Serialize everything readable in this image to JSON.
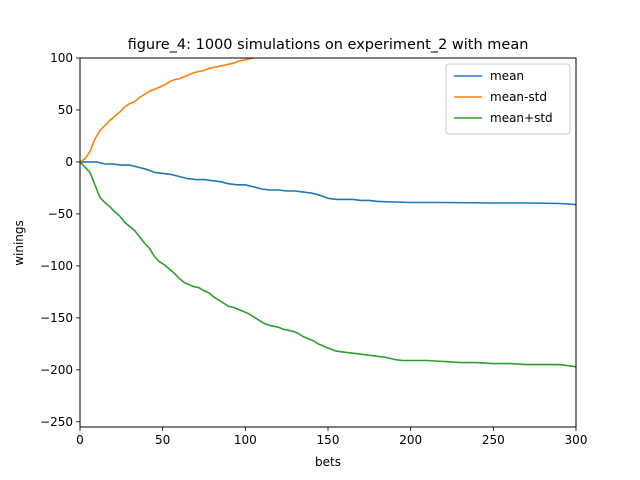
{
  "chart_data": {
    "type": "line",
    "title": "figure_4: 1000 simulations on experiment_2 with mean",
    "xlabel": "bets",
    "ylabel": "winings",
    "xlim": [
      0,
      300
    ],
    "ylim": [
      -255,
      100
    ],
    "xticks": [
      0,
      50,
      100,
      150,
      200,
      250,
      300
    ],
    "yticks": [
      -250,
      -200,
      -150,
      -100,
      -50,
      0,
      50,
      100
    ],
    "xtick_labels": [
      "0",
      "50",
      "100",
      "150",
      "200",
      "250",
      "300"
    ],
    "ytick_labels": [
      "−250",
      "−200",
      "−150",
      "−100",
      "−50",
      "0",
      "50",
      "100"
    ],
    "legend_position": "top-right",
    "grid": false,
    "series": [
      {
        "name": "mean",
        "color": "#1f77b4",
        "points": [
          [
            0,
            0
          ],
          [
            5,
            0
          ],
          [
            10,
            0
          ],
          [
            15,
            -2
          ],
          [
            20,
            -2
          ],
          [
            25,
            -3
          ],
          [
            30,
            -3
          ],
          [
            35,
            -5
          ],
          [
            40,
            -7
          ],
          [
            45,
            -10
          ],
          [
            50,
            -11
          ],
          [
            55,
            -12
          ],
          [
            60,
            -14
          ],
          [
            65,
            -16
          ],
          [
            70,
            -17
          ],
          [
            75,
            -17
          ],
          [
            80,
            -18
          ],
          [
            85,
            -19
          ],
          [
            90,
            -21
          ],
          [
            95,
            -22
          ],
          [
            100,
            -22
          ],
          [
            105,
            -24
          ],
          [
            110,
            -26
          ],
          [
            115,
            -27
          ],
          [
            120,
            -27
          ],
          [
            125,
            -28
          ],
          [
            130,
            -28
          ],
          [
            135,
            -29
          ],
          [
            140,
            -30
          ],
          [
            145,
            -32
          ],
          [
            150,
            -35
          ],
          [
            155,
            -36
          ],
          [
            160,
            -36
          ],
          [
            165,
            -36
          ],
          [
            170,
            -37
          ],
          [
            175,
            -37
          ],
          [
            180,
            -38
          ],
          [
            190,
            -38.5
          ],
          [
            200,
            -39
          ],
          [
            220,
            -39
          ],
          [
            250,
            -39.5
          ],
          [
            270,
            -39.5
          ],
          [
            290,
            -40
          ],
          [
            300,
            -41
          ]
        ]
      },
      {
        "name": "mean-std",
        "color": "#ff7f0e",
        "points": [
          [
            0,
            0
          ],
          [
            3,
            3
          ],
          [
            6,
            10
          ],
          [
            9,
            22
          ],
          [
            12,
            30
          ],
          [
            15,
            35
          ],
          [
            18,
            40
          ],
          [
            21,
            44
          ],
          [
            24,
            48
          ],
          [
            27,
            53
          ],
          [
            30,
            56
          ],
          [
            33,
            58
          ],
          [
            36,
            62
          ],
          [
            39,
            65
          ],
          [
            42,
            68
          ],
          [
            45,
            70
          ],
          [
            48,
            72
          ],
          [
            51,
            74
          ],
          [
            54,
            77
          ],
          [
            57,
            79
          ],
          [
            60,
            80
          ],
          [
            63,
            82
          ],
          [
            66,
            84
          ],
          [
            69,
            86
          ],
          [
            72,
            87
          ],
          [
            75,
            88
          ],
          [
            78,
            90
          ],
          [
            81,
            91
          ],
          [
            84,
            92
          ],
          [
            87,
            93
          ],
          [
            90,
            94
          ],
          [
            93,
            95
          ],
          [
            96,
            97
          ],
          [
            99,
            98
          ],
          [
            102,
            99
          ],
          [
            105,
            100
          ],
          [
            106,
            101
          ]
        ]
      },
      {
        "name": "mean+std",
        "color": "#2ca02c",
        "points": [
          [
            0,
            0
          ],
          [
            3,
            -5
          ],
          [
            6,
            -10
          ],
          [
            9,
            -22
          ],
          [
            12,
            -34
          ],
          [
            15,
            -39
          ],
          [
            18,
            -43
          ],
          [
            21,
            -48
          ],
          [
            24,
            -52
          ],
          [
            27,
            -58
          ],
          [
            30,
            -62
          ],
          [
            33,
            -66
          ],
          [
            36,
            -72
          ],
          [
            39,
            -78
          ],
          [
            42,
            -83
          ],
          [
            45,
            -91
          ],
          [
            48,
            -96
          ],
          [
            51,
            -99
          ],
          [
            54,
            -103
          ],
          [
            57,
            -107
          ],
          [
            60,
            -112
          ],
          [
            63,
            -116
          ],
          [
            66,
            -118
          ],
          [
            69,
            -120
          ],
          [
            72,
            -121
          ],
          [
            75,
            -124
          ],
          [
            78,
            -126
          ],
          [
            81,
            -130
          ],
          [
            84,
            -133
          ],
          [
            87,
            -136
          ],
          [
            90,
            -139
          ],
          [
            93,
            -140
          ],
          [
            96,
            -142
          ],
          [
            99,
            -144
          ],
          [
            102,
            -146
          ],
          [
            105,
            -149
          ],
          [
            108,
            -152
          ],
          [
            111,
            -155
          ],
          [
            114,
            -157
          ],
          [
            117,
            -158
          ],
          [
            120,
            -159
          ],
          [
            123,
            -161
          ],
          [
            126,
            -162
          ],
          [
            129,
            -163
          ],
          [
            132,
            -165
          ],
          [
            135,
            -168
          ],
          [
            138,
            -170
          ],
          [
            141,
            -172
          ],
          [
            144,
            -175
          ],
          [
            147,
            -177
          ],
          [
            150,
            -179
          ],
          [
            155,
            -182
          ],
          [
            160,
            -183
          ],
          [
            165,
            -184
          ],
          [
            170,
            -185
          ],
          [
            175,
            -186
          ],
          [
            180,
            -187
          ],
          [
            185,
            -188
          ],
          [
            190,
            -190
          ],
          [
            195,
            -191
          ],
          [
            200,
            -191
          ],
          [
            210,
            -191
          ],
          [
            220,
            -192
          ],
          [
            230,
            -193
          ],
          [
            240,
            -193
          ],
          [
            250,
            -194
          ],
          [
            260,
            -194
          ],
          [
            270,
            -195
          ],
          [
            280,
            -195
          ],
          [
            290,
            -195
          ],
          [
            300,
            -197
          ]
        ]
      }
    ]
  }
}
